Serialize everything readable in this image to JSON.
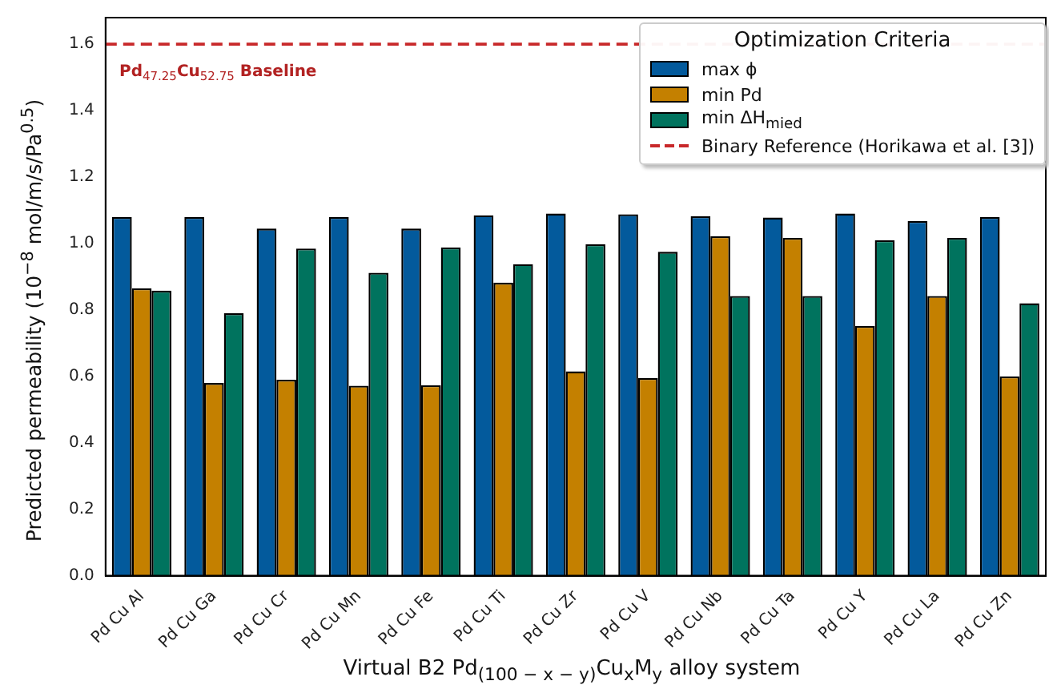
{
  "chart_data": {
    "type": "bar",
    "xlabel": "Virtual B2 Pd$_{(100 − x − y)}$Cu$_{x}$M$_{y}$ alloy system",
    "ylabel": "Predicted permeability (10$^{−8}$ mol/m/s/Pa$^{0.5}$)",
    "legend_title": "Optimization Criteria",
    "categories": [
      "Pd Cu Al",
      "Pd Cu Ga",
      "Pd Cu Cr",
      "Pd Cu Mn",
      "Pd Cu Fe",
      "Pd Cu Ti",
      "Pd Cu Zr",
      "Pd Cu V",
      "Pd Cu Nb",
      "Pd Cu Ta",
      "Pd Cu Y",
      "Pd Cu La",
      "Pd Cu Zn"
    ],
    "series": [
      {
        "name": "max ϕ",
        "color": "#035a9c",
        "values": [
          1.08,
          1.08,
          1.045,
          1.08,
          1.045,
          1.085,
          1.09,
          1.088,
          1.082,
          1.078,
          1.09,
          1.068,
          1.08
        ]
      },
      {
        "name": "min Pd",
        "color": "#c48000",
        "values": [
          0.865,
          0.58,
          0.59,
          0.572,
          0.573,
          0.882,
          0.615,
          0.595,
          1.022,
          1.017,
          0.752,
          0.842,
          0.6
        ]
      },
      {
        "name": "min ΔH$_{mied}$",
        "color": "#00735e",
        "values": [
          0.858,
          0.79,
          0.985,
          0.912,
          0.988,
          0.938,
          0.998,
          0.975,
          0.842,
          0.842,
          1.01,
          1.017,
          0.82
        ]
      }
    ],
    "ylim": [
      0,
      1.68
    ],
    "yticks": [
      {
        "value": 0,
        "label": "0.0"
      },
      0.2,
      0.4,
      0.6,
      0.8,
      {
        "value": 1,
        "label": "1.0"
      },
      1.2,
      1.4,
      1.6
    ],
    "ref_lines": [
      {
        "axis": "y",
        "value": 1.6,
        "label": "Binary Reference (Horikawa et al. [3])",
        "color": "#c8282a",
        "line_style": "dashed"
      }
    ],
    "annotations": [
      {
        "text": "Pd$_{47.25}$Cu$_{52.75}$ Baseline",
        "x": "Pd Cu Al",
        "y": 1.6
      }
    ],
    "grid": false,
    "legend": "top right"
  }
}
